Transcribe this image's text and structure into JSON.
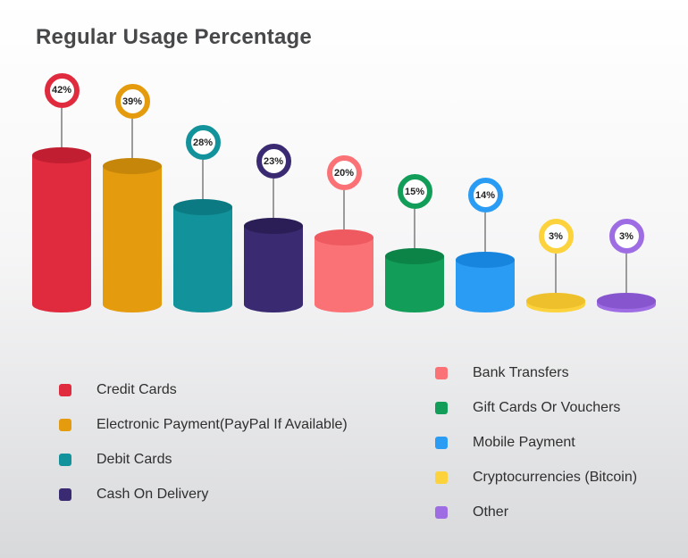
{
  "chart_data": {
    "type": "bar",
    "title": "Regular Usage Percentage",
    "categories": [
      "Credit Cards",
      "Electronic Payment(PayPal If Available)",
      "Debit Cards",
      "Cash On Delivery",
      "Bank Transfers",
      "Gift Cards Or Vouchers",
      "Mobile Payment",
      "Cryptocurrencies (Bitcoin)",
      "Other"
    ],
    "values": [
      42,
      39,
      28,
      23,
      20,
      15,
      14,
      3,
      3
    ],
    "labels": [
      "42%",
      "39%",
      "28%",
      "23%",
      "20%",
      "15%",
      "14%",
      "3%",
      "3%"
    ],
    "colors": [
      "#e02b3f",
      "#e49b0e",
      "#12929b",
      "#3a2a71",
      "#fa7276",
      "#129e58",
      "#2b9cf4",
      "#fcd33c",
      "#9e6de3"
    ],
    "top_colors": [
      "#c11f31",
      "#c5860a",
      "#0c7a82",
      "#2b1e57",
      "#ef5a60",
      "#0c8347",
      "#1785dd",
      "#eec02b",
      "#8756cf"
    ],
    "ylabel": "",
    "xlabel": "",
    "ylim": [
      0,
      45
    ],
    "grid": false,
    "legend_position": "bottom"
  }
}
